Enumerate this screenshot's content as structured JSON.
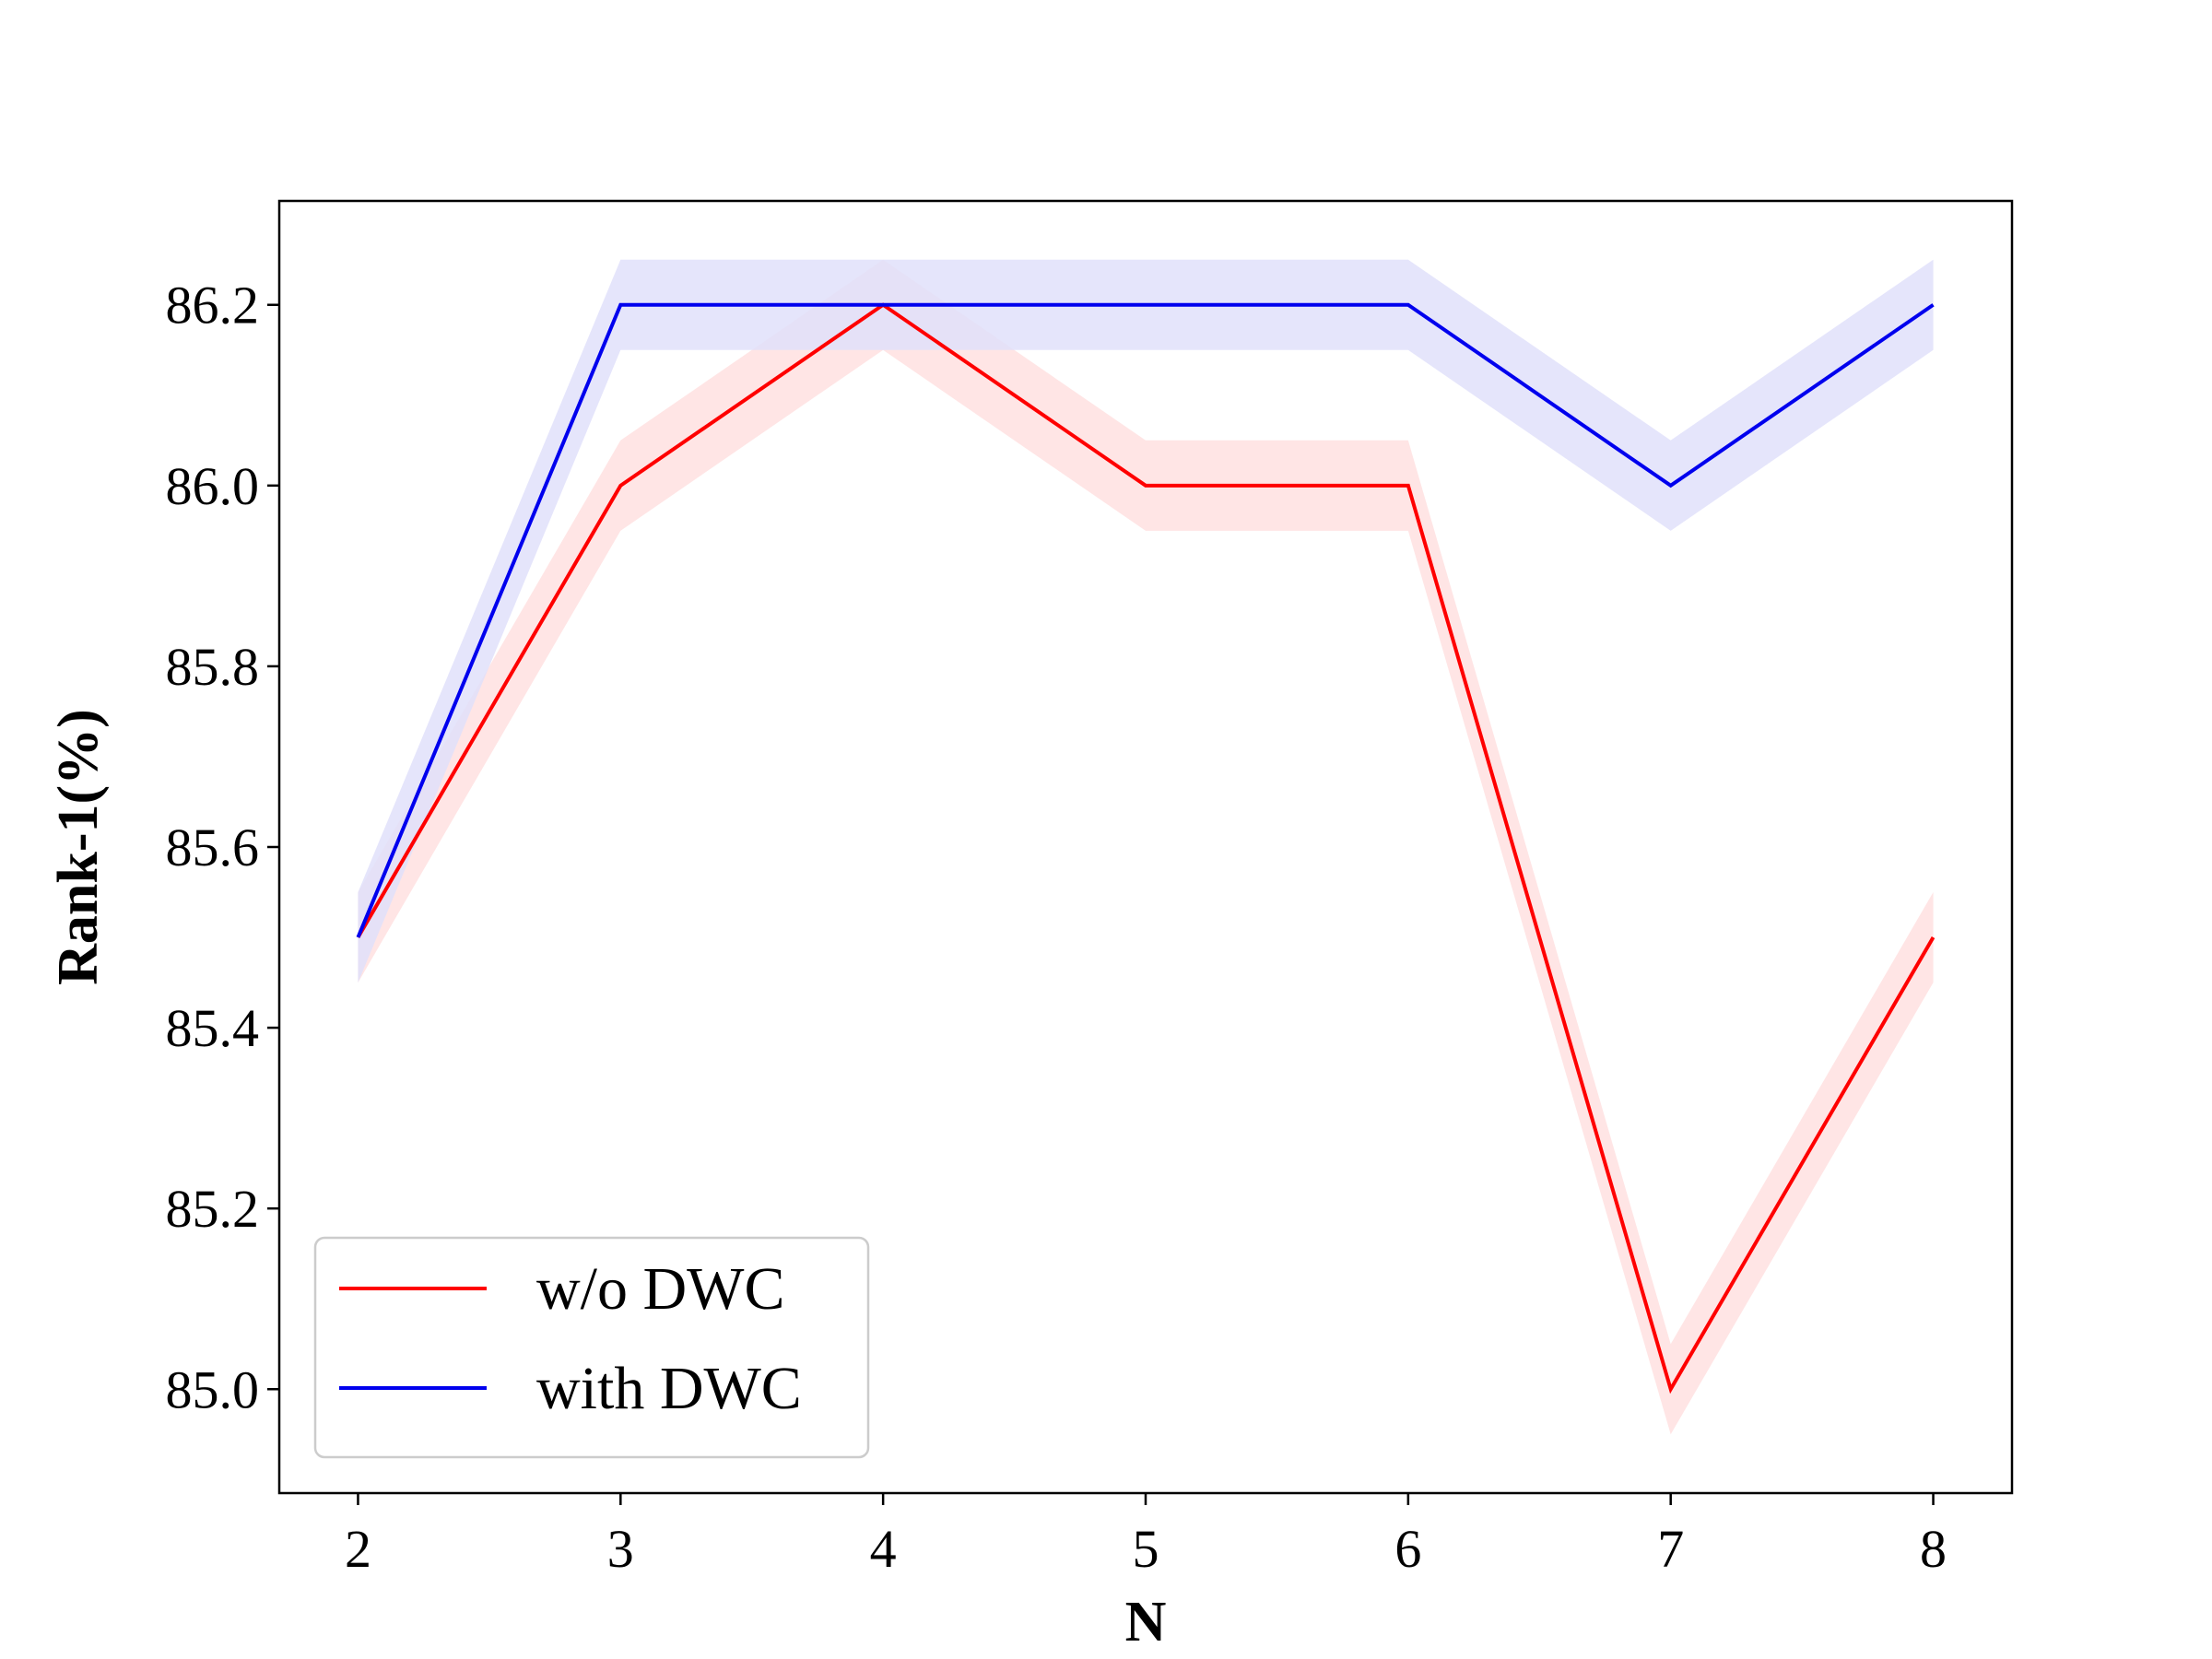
{
  "chart_data": {
    "type": "line",
    "title": "",
    "xlabel": "N",
    "ylabel": "Rank-1(%)",
    "x": [
      2,
      3,
      4,
      5,
      6,
      7,
      8
    ],
    "x_ticks": [
      "2",
      "3",
      "4",
      "5",
      "6",
      "7",
      "8"
    ],
    "y_ticks": [
      "85.0",
      "85.2",
      "85.4",
      "85.6",
      "85.8",
      "86.0",
      "86.2"
    ],
    "xlim": [
      1.7,
      8.3
    ],
    "ylim": [
      84.885,
      86.315
    ],
    "grid": false,
    "legend_position": "lower-left",
    "band_halfwidth": 0.05,
    "series": [
      {
        "name": "w/o DWC",
        "color": "#ff0000",
        "band_color": "#ffe0e0",
        "values": [
          85.5,
          86.0,
          86.2,
          86.0,
          86.0,
          85.0,
          85.5
        ]
      },
      {
        "name": "with DWC",
        "color": "#0000ee",
        "band_color": "#e0e0fa",
        "values": [
          85.5,
          86.2,
          86.2,
          86.2,
          86.2,
          86.0,
          86.2
        ]
      }
    ]
  }
}
